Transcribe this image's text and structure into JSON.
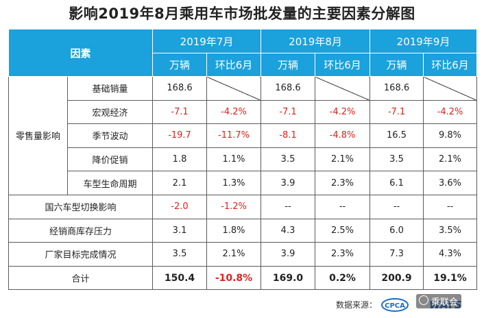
{
  "title": "影响2019年8月乘用车市场批发量的主要因素分解图",
  "header": {
    "factor": "因素",
    "months": [
      "2019年7月",
      "2019年8月",
      "2019年9月"
    ],
    "sub": [
      "万辆",
      "环比6月",
      "万辆",
      "环比6月",
      "万辆",
      "环比6月"
    ]
  },
  "group_label": "零售量影响",
  "rows": [
    {
      "label": "基础销量",
      "cells": [
        "168.6",
        "",
        "168.6",
        "",
        "168.6",
        ""
      ]
    },
    {
      "label": "宏观经济",
      "cells": [
        "-7.1",
        "-4.2%",
        "-7.1",
        "-4.2%",
        "-7.1",
        "-4.2%"
      ]
    },
    {
      "label": "季节波动",
      "cells": [
        "-19.7",
        "-11.7%",
        "-8.1",
        "-4.8%",
        "16.5",
        "9.8%"
      ]
    },
    {
      "label": "降价促销",
      "cells": [
        "1.8",
        "1.1%",
        "3.5",
        "2.1%",
        "3.5",
        "2.1%"
      ]
    },
    {
      "label": "车型生命周期",
      "cells": [
        "2.1",
        "1.3%",
        "3.9",
        "2.3%",
        "6.1",
        "3.6%"
      ]
    },
    {
      "label": "国六车型切换影响",
      "cells": [
        "-2.0",
        "-1.2%",
        "--",
        "--",
        "--",
        "--"
      ]
    },
    {
      "label": "经销商库存压力",
      "cells": [
        "3.1",
        "1.8%",
        "4.3",
        "2.5%",
        "6.0",
        "3.5%"
      ]
    },
    {
      "label": "厂家目标完成情况",
      "cells": [
        "3.5",
        "2.1%",
        "3.9",
        "2.3%",
        "7.3",
        "4.3%"
      ]
    },
    {
      "label": "合计",
      "cells": [
        "150.4",
        "-10.8%",
        "169.0",
        "0.2%",
        "200.9",
        "19.1%"
      ]
    }
  ],
  "footer": {
    "source_label": "数据来源：",
    "logo_text": "CPCA",
    "logo2_text": "WAYS",
    "watermark": "乘联会"
  },
  "colors": {
    "header_bg": "#1ba1dc",
    "negative": "#e0211c"
  }
}
